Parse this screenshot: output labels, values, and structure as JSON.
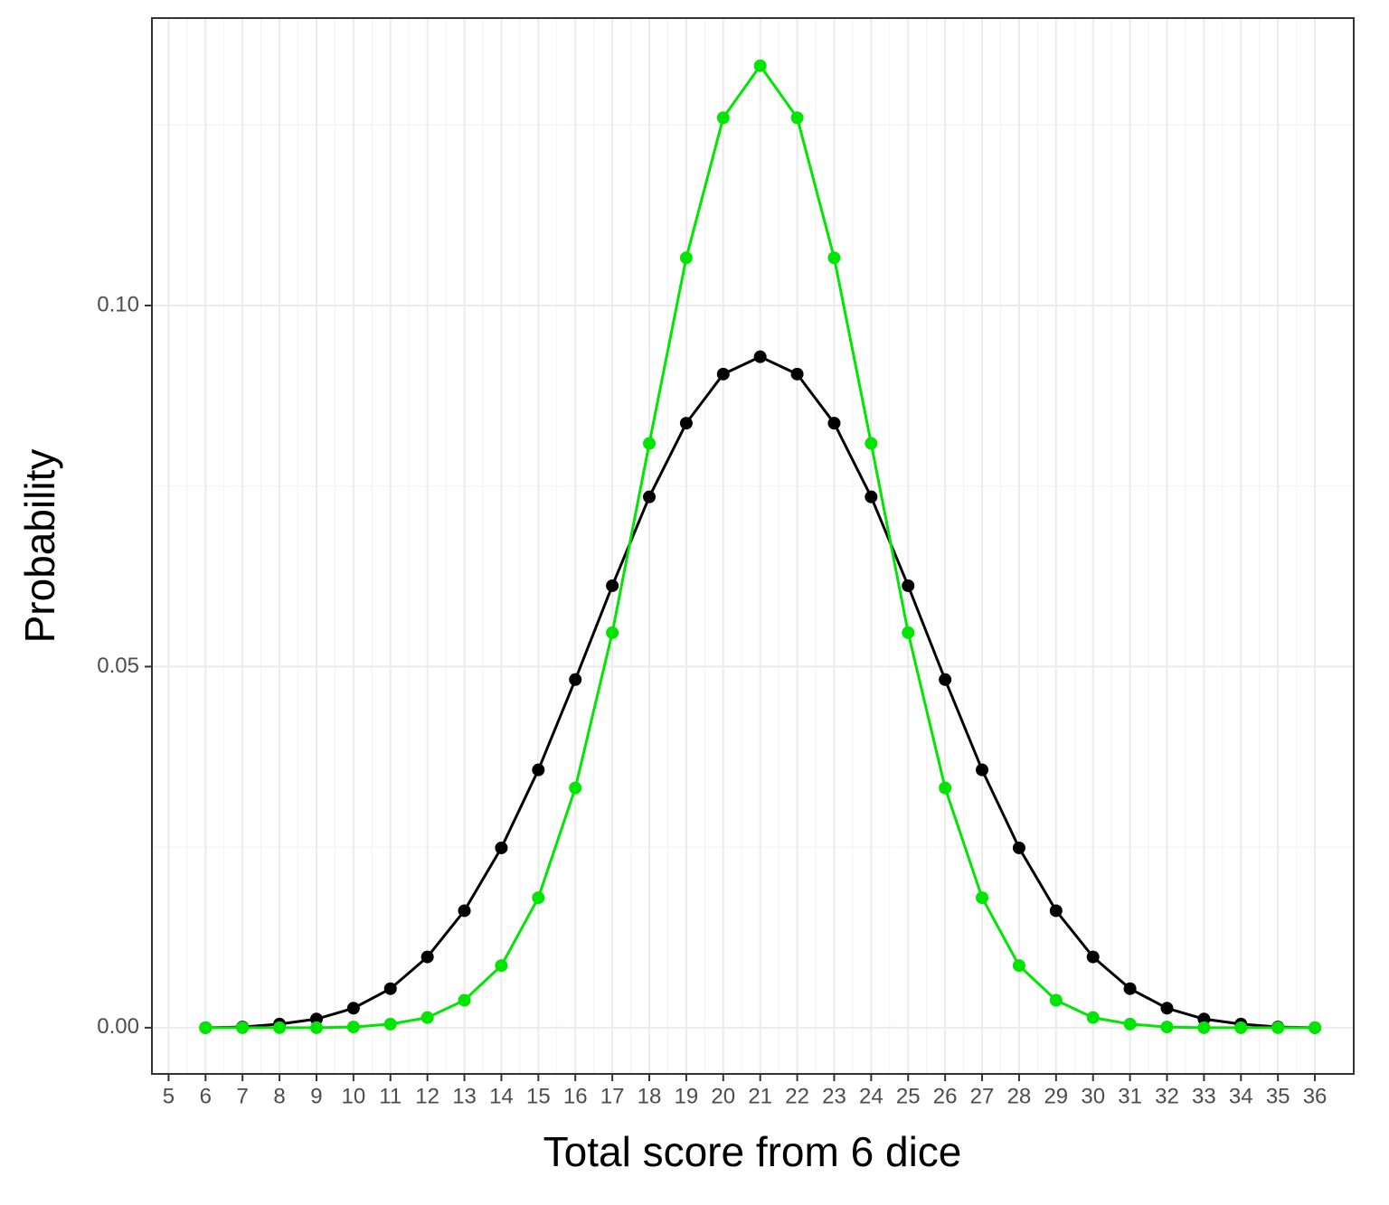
{
  "chart_data": {
    "type": "line",
    "x_label": "Total score from 6 dice",
    "y_label": "Probability",
    "x": [
      6,
      7,
      8,
      9,
      10,
      11,
      12,
      13,
      14,
      15,
      16,
      17,
      18,
      19,
      20,
      21,
      22,
      23,
      24,
      25,
      26,
      27,
      28,
      29,
      30,
      31,
      32,
      33,
      34,
      35,
      36
    ],
    "series": [
      {
        "color": "#000000",
        "values": [
          0.0,
          0.0001,
          0.0005,
          0.0012,
          0.0027,
          0.0054,
          0.0098,
          0.0162,
          0.0249,
          0.0357,
          0.0482,
          0.0612,
          0.0735,
          0.0837,
          0.0905,
          0.0929,
          0.0905,
          0.0837,
          0.0735,
          0.0612,
          0.0482,
          0.0357,
          0.0249,
          0.0162,
          0.0098,
          0.0054,
          0.0027,
          0.0012,
          0.0005,
          0.0001,
          0.0
        ]
      },
      {
        "color": "#00e600",
        "values": [
          0.0,
          0.0,
          0.0,
          0.0,
          0.0001,
          0.0005,
          0.0014,
          0.0038,
          0.0086,
          0.018,
          0.0332,
          0.0547,
          0.0809,
          0.1066,
          0.126,
          0.1332,
          0.126,
          0.1066,
          0.0809,
          0.0547,
          0.0332,
          0.018,
          0.0086,
          0.0038,
          0.0014,
          0.0005,
          0.0001,
          0.0,
          0.0,
          0.0,
          0.0
        ]
      }
    ],
    "xlim": [
      4.55,
      37.05
    ],
    "xticks": [
      5,
      6,
      7,
      8,
      9,
      10,
      11,
      12,
      13,
      14,
      15,
      16,
      17,
      18,
      19,
      20,
      21,
      22,
      23,
      24,
      25,
      26,
      27,
      28,
      29,
      30,
      31,
      32,
      33,
      34,
      35,
      36
    ],
    "ylim": [
      -0.0064,
      0.1398
    ],
    "yticks": [
      {
        "value": 0,
        "label": "0.00"
      },
      {
        "value": 0.05,
        "label": "0.05"
      },
      {
        "value": 0.1,
        "label": "0.10"
      }
    ],
    "grid": true
  }
}
